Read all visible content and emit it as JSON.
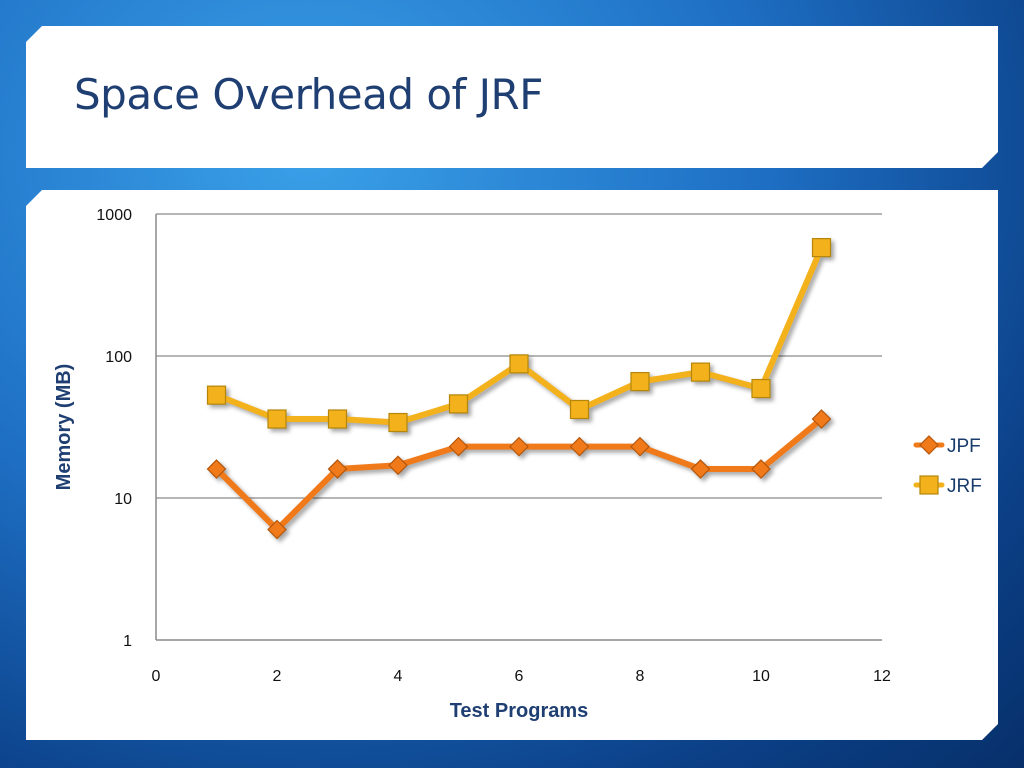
{
  "slide": {
    "title": "Space Overhead of JRF"
  },
  "chart_data": {
    "type": "line",
    "title": "",
    "xlabel": "Test Programs",
    "ylabel": "Memory (MB)",
    "xlim": [
      0,
      12
    ],
    "ylim": [
      1,
      1000
    ],
    "yscale": "log",
    "xticks": [
      0,
      2,
      4,
      6,
      8,
      10,
      12
    ],
    "yticks": [
      1,
      10,
      100,
      1000
    ],
    "grid": "horizontal",
    "legend": "right",
    "series": [
      {
        "name": "JPF",
        "color": "#f07a1a",
        "marker": "diamond",
        "x": [
          1,
          2,
          3,
          4,
          5,
          6,
          7,
          8,
          9,
          10,
          11
        ],
        "y": [
          16,
          6,
          16,
          17,
          23,
          23,
          23,
          23,
          16,
          16,
          36
        ]
      },
      {
        "name": "JRF",
        "color": "#f3b11c",
        "marker": "square",
        "x": [
          1,
          2,
          3,
          4,
          5,
          6,
          7,
          8,
          9,
          10,
          11
        ],
        "y": [
          53,
          36,
          36,
          34,
          46,
          88,
          42,
          66,
          77,
          59,
          580
        ]
      }
    ]
  }
}
